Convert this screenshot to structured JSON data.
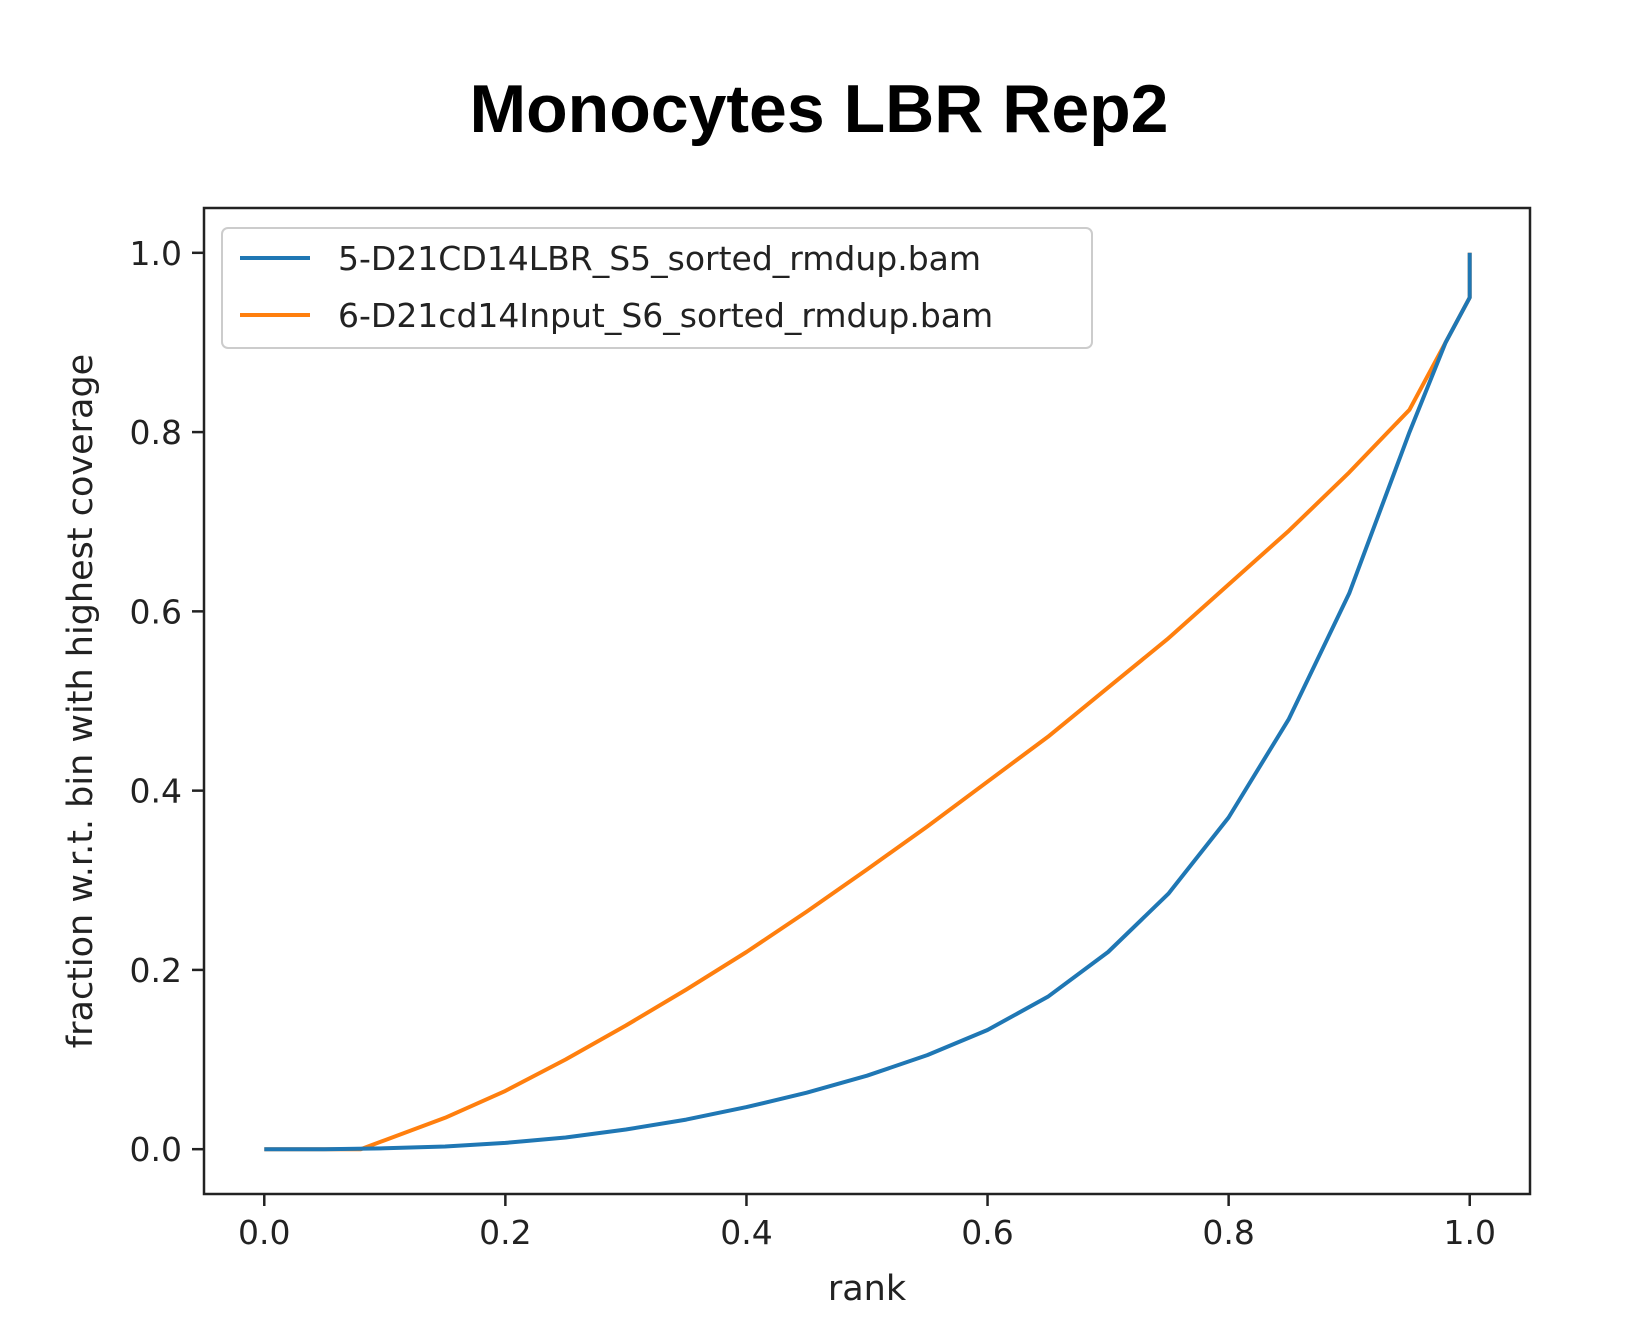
{
  "chart_data": {
    "type": "line",
    "title": "Monocytes LBR Rep2",
    "xlabel": "rank",
    "ylabel": "fraction w.r.t. bin with highest coverage",
    "xlim": [
      -0.05,
      1.05
    ],
    "ylim": [
      -0.05,
      1.05
    ],
    "xticks": [
      0.0,
      0.2,
      0.4,
      0.6,
      0.8,
      1.0
    ],
    "xtick_labels": [
      "0.0",
      "0.2",
      "0.4",
      "0.6",
      "0.8",
      "1.0"
    ],
    "yticks": [
      0.0,
      0.2,
      0.4,
      0.6,
      0.8,
      1.0
    ],
    "ytick_labels": [
      "0.0",
      "0.2",
      "0.4",
      "0.6",
      "0.8",
      "1.0"
    ],
    "grid": false,
    "legend_position": "upper-left",
    "series": [
      {
        "name": "5-D21CD14LBR_S5_sorted_rmdup.bam",
        "color": "#1f77b4",
        "x": [
          0.0,
          0.05,
          0.1,
          0.15,
          0.2,
          0.25,
          0.3,
          0.35,
          0.4,
          0.45,
          0.5,
          0.55,
          0.6,
          0.65,
          0.7,
          0.75,
          0.8,
          0.85,
          0.9,
          0.95,
          0.98,
          1.0,
          1.0
        ],
        "y": [
          0.0,
          0.0,
          0.001,
          0.003,
          0.007,
          0.013,
          0.022,
          0.033,
          0.047,
          0.063,
          0.082,
          0.105,
          0.133,
          0.17,
          0.22,
          0.285,
          0.37,
          0.48,
          0.62,
          0.8,
          0.9,
          0.95,
          1.0
        ]
      },
      {
        "name": "6-D21cd14Input_S6_sorted_rmdup.bam",
        "color": "#ff7f0e",
        "x": [
          0.0,
          0.05,
          0.08,
          0.1,
          0.15,
          0.2,
          0.25,
          0.3,
          0.35,
          0.4,
          0.45,
          0.5,
          0.55,
          0.6,
          0.65,
          0.7,
          0.75,
          0.8,
          0.85,
          0.9,
          0.95,
          1.0,
          1.0
        ],
        "y": [
          0.0,
          0.0,
          0.0,
          0.01,
          0.035,
          0.065,
          0.1,
          0.138,
          0.178,
          0.22,
          0.265,
          0.312,
          0.36,
          0.41,
          0.46,
          0.515,
          0.57,
          0.63,
          0.69,
          0.755,
          0.825,
          0.95,
          1.0
        ]
      }
    ]
  }
}
